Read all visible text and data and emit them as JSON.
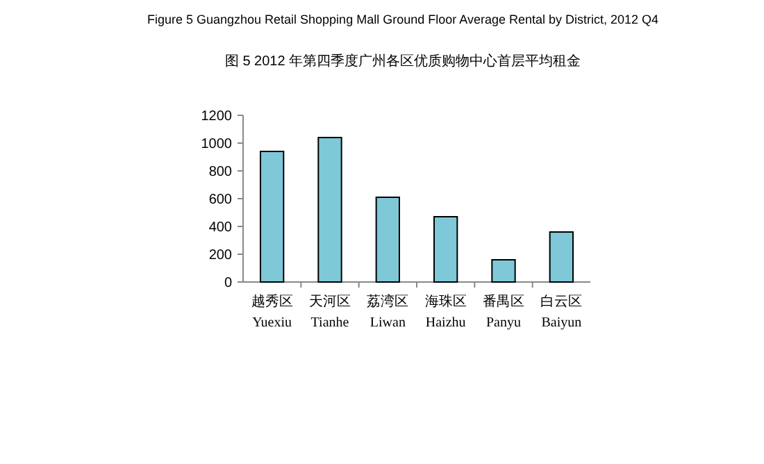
{
  "chart_data": {
    "type": "bar",
    "title": "Figure 5 Guangzhou Retail Shopping Mall Ground Floor Average Rental by District, 2012 Q4",
    "subtitle": "图 5 2012 年第四季度广州各区优质购物中心首层平均租金",
    "categories": [
      "越秀区 Yuexiu",
      "天河区 Tianhe",
      "荔湾区 Liwan",
      "海珠区 Haizhu",
      "番禺区 Panyu",
      "白云区 Baiyun"
    ],
    "values": [
      940,
      1040,
      610,
      470,
      160,
      360
    ],
    "color": "#7ec8d8",
    "ylim": [
      0,
      1200
    ],
    "yticks": [
      0,
      200,
      400,
      600,
      800,
      1000,
      1200
    ],
    "grid": false
  }
}
